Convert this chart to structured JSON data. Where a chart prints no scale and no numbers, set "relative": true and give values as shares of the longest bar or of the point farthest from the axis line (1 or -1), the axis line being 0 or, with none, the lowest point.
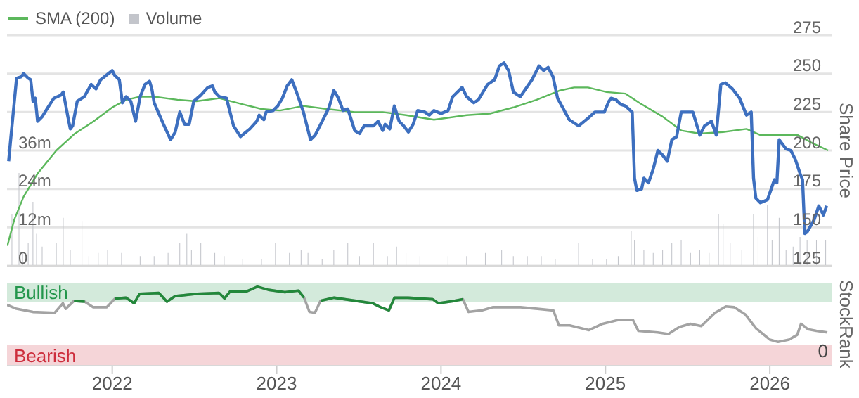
{
  "chart_data": [
    {
      "type": "line",
      "legend": "top left",
      "grid": "y",
      "tick_labels": "y",
      "xlim": [
        2021.36,
        2026.38
      ],
      "ylim": [
        0,
        72
      ],
      "yticks": [
        0,
        {
          "value": 12,
          "label": "12m"
        },
        {
          "value": 24,
          "label": "24m"
        },
        {
          "value": 36,
          "label": "36m"
        }
      ],
      "y2lim": [
        125,
        275
      ],
      "y2ticks": [
        125,
        150,
        175,
        200,
        225,
        250,
        275
      ],
      "y2label": "Share Price",
      "series": [
        {
          "type": "bar",
          "name": "Volume",
          "color": "#c3c5cb",
          "x": [
            2021.39,
            2021.433,
            2021.455,
            2021.489,
            2021.518,
            2021.54,
            2021.574,
            2021.66,
            2021.702,
            2021.745,
            2021.816,
            2021.858,
            2021.915,
            2021.972,
            2022.057,
            2022.17,
            2022.255,
            2022.34,
            2022.411,
            2022.454,
            2022.482,
            2022.539,
            2022.624,
            2022.681,
            2022.794,
            2022.908,
            2022.993,
            2023.078,
            2023.149,
            2023.191,
            2023.277,
            2023.348,
            2023.433,
            2023.504,
            2023.589,
            2023.674,
            2023.73,
            2023.787,
            2023.872,
            2024.043,
            2024.156,
            2024.27,
            2024.369,
            2024.44,
            2024.525,
            2024.61,
            2024.695,
            2024.837,
            2024.922,
            2025.007,
            2025.078,
            2025.157,
            2025.177,
            2025.234,
            2025.291,
            2025.348,
            2025.404,
            2025.461,
            2025.518,
            2025.574,
            2025.631,
            2025.688,
            2025.716,
            2025.759,
            2025.83,
            2025.901,
            2025.929,
            2025.986,
            2026.014,
            2026.057,
            2026.099,
            2026.142,
            2026.184,
            2026.227,
            2026.284,
            2026.34
          ],
          "values": [
            16,
            29,
            4,
            7,
            20,
            10,
            6,
            7,
            15,
            5,
            14,
            3,
            4,
            5,
            4,
            3,
            3,
            4,
            7,
            10,
            5,
            7,
            4,
            3,
            2,
            2,
            7,
            4,
            5,
            4,
            2,
            5,
            7,
            3,
            7,
            3,
            6,
            4,
            3,
            3,
            3,
            4,
            5,
            3,
            3,
            3,
            2,
            7,
            2,
            2,
            3,
            11,
            8,
            5,
            4,
            5,
            7,
            8,
            4,
            5,
            4,
            16,
            13,
            7,
            5,
            16,
            9,
            19,
            8,
            15,
            5,
            6,
            9,
            8,
            8,
            8
          ]
        },
        {
          "type": "line",
          "name": "SMA (200)",
          "color": "#5cb85c",
          "axis": "y2",
          "x": [
            2021.362,
            2021.404,
            2021.461,
            2021.546,
            2021.66,
            2021.773,
            2021.887,
            2022.0,
            2022.085,
            2022.17,
            2022.255,
            2022.397,
            2022.511,
            2022.652,
            2022.794,
            2022.908,
            2023.021,
            2023.163,
            2023.305,
            2023.475,
            2023.645,
            2023.787,
            2023.957,
            2024.156,
            2024.298,
            2024.44,
            2024.582,
            2024.723,
            2024.809,
            2024.894,
            2025.007,
            2025.121,
            2025.206,
            2025.348,
            2025.461,
            2025.574,
            2025.716,
            2025.858,
            2025.943,
            2026.057,
            2026.17,
            2026.255,
            2026.355
          ],
          "values": [
            138,
            155,
            170,
            185,
            200,
            211,
            219,
            228,
            233,
            235,
            235,
            233,
            232,
            234,
            230,
            227,
            226,
            229,
            227,
            225,
            225,
            223,
            220,
            223,
            224,
            228,
            233,
            239,
            241,
            241,
            238,
            237,
            231,
            222,
            213,
            211,
            212,
            214,
            210,
            210,
            210,
            205,
            200
          ]
        },
        {
          "type": "line",
          "color": "#3d6fbf",
          "axis": "y2",
          "x": [
            2021.37,
            2021.382,
            2021.418,
            2021.447,
            2021.461,
            2021.489,
            2021.504,
            2021.518,
            2021.532,
            2021.546,
            2021.574,
            2021.603,
            2021.645,
            2021.688,
            2021.702,
            2021.73,
            2021.745,
            2021.759,
            2021.787,
            2021.83,
            2021.872,
            2021.901,
            2021.929,
            2022.0,
            2022.014,
            2022.043,
            2022.062,
            2022.085,
            2022.113,
            2022.142,
            2022.17,
            2022.199,
            2022.227,
            2022.241,
            2022.255,
            2022.312,
            2022.355,
            2022.383,
            2022.411,
            2022.44,
            2022.468,
            2022.496,
            2022.539,
            2022.582,
            2022.61,
            2022.624,
            2022.652,
            2022.695,
            2022.738,
            2022.78,
            2022.837,
            2022.879,
            2022.894,
            2022.922,
            2022.936,
            2022.979,
            2023.007,
            2023.035,
            2023.064,
            2023.092,
            2023.121,
            2023.163,
            2023.206,
            2023.234,
            2023.277,
            2023.319,
            2023.348,
            2023.376,
            2023.404,
            2023.433,
            2023.475,
            2023.504,
            2023.532,
            2023.574,
            2023.589,
            2023.617,
            2023.645,
            2023.66,
            2023.688,
            2023.716,
            2023.745,
            2023.773,
            2023.801,
            2023.83,
            2023.858,
            2023.901,
            2023.929,
            2023.957,
            2024.0,
            2024.043,
            2024.071,
            2024.128,
            2024.156,
            2024.199,
            2024.227,
            2024.284,
            2024.326,
            2024.355,
            2024.383,
            2024.411,
            2024.44,
            2024.482,
            2024.553,
            2024.596,
            2024.624,
            2024.652,
            2024.681,
            2024.709,
            2024.78,
            2024.837,
            2024.894,
            2024.936,
            2024.993,
            2025.021,
            2025.035,
            2025.064,
            2025.092,
            2025.121,
            2025.163,
            2025.177,
            2025.191,
            2025.22,
            2025.234,
            2025.262,
            2025.291,
            2025.319,
            2025.348,
            2025.376,
            2025.404,
            2025.433,
            2025.461,
            2025.504,
            2025.532,
            2025.574,
            2025.603,
            2025.645,
            2025.674,
            2025.702,
            2025.73,
            2025.773,
            2025.816,
            2025.858,
            2025.887,
            2025.901,
            2025.915,
            2025.943,
            2025.986,
            2026.028,
            2026.043,
            2026.057,
            2026.099,
            2026.128,
            2026.156,
            2026.184,
            2026.199,
            2026.213,
            2026.227,
            2026.27,
            2026.298,
            2026.312,
            2026.326,
            2026.346
          ],
          "values": [
            193,
            207,
            247,
            248,
            250,
            247,
            246,
            232,
            234,
            219,
            222,
            227,
            234,
            236,
            238,
            222,
            214,
            216,
            232,
            235,
            243,
            240,
            246,
            252,
            249,
            246,
            231,
            235,
            232,
            219,
            235,
            243,
            245,
            240,
            231,
            217,
            207,
            212,
            225,
            217,
            217,
            232,
            236,
            241,
            242,
            238,
            235,
            234,
            216,
            209,
            214,
            219,
            223,
            220,
            225,
            226,
            229,
            234,
            242,
            246,
            238,
            225,
            207,
            210,
            219,
            228,
            239,
            234,
            226,
            227,
            213,
            211,
            216,
            216,
            216,
            219,
            213,
            217,
            214,
            229,
            219,
            216,
            212,
            217,
            226,
            225,
            223,
            226,
            224,
            226,
            235,
            241,
            235,
            231,
            233,
            243,
            246,
            255,
            257,
            252,
            238,
            235,
            246,
            255,
            252,
            254,
            248,
            234,
            220,
            216,
            221,
            225,
            225,
            232,
            234,
            233,
            230,
            229,
            225,
            182,
            174,
            175,
            182,
            179,
            188,
            200,
            197,
            193,
            207,
            209,
            225,
            225,
            225,
            210,
            216,
            219,
            210,
            243,
            244,
            240,
            234,
            223,
            225,
            182,
            169,
            166,
            168,
            181,
            179,
            207,
            201,
            200,
            194,
            185,
            181,
            146,
            147,
            155,
            164,
            161,
            158,
            164
          ]
        }
      ]
    },
    {
      "type": "line",
      "relative": true,
      "ylabel": "StockRank",
      "xlim": [
        2021.36,
        2026.38
      ],
      "xticks": [
        2022,
        2023,
        2024,
        2025,
        2026
      ],
      "annotations": [
        "0"
      ],
      "bands": [
        {
          "axis": "y",
          "from": 0.8,
          "to": 1.05,
          "label": "Bullish",
          "color": "#d3eadb"
        },
        {
          "axis": "y",
          "from": 0,
          "to": 0.26,
          "label": "Bearish",
          "color": "#f5d5d8"
        }
      ],
      "series": [
        {
          "color": "#a3a3a3",
          "x": [
            2021.36,
            2021.417,
            2021.517,
            2021.65,
            2021.7,
            2021.717,
            2021.767,
            2021.833,
            2021.883,
            2021.967,
            2022.017,
            2022.083,
            2022.133,
            2022.167,
            2022.283,
            2022.333,
            2022.383,
            2022.517,
            2022.65,
            2022.683,
            2022.717,
            2022.817,
            2022.883,
            2022.95,
            2023.05,
            2023.133,
            2023.167,
            2023.2,
            2023.233,
            2023.267,
            2023.35,
            2023.483,
            2023.583,
            2023.633,
            2023.683,
            2023.717,
            2023.8,
            2023.95,
            2023.983,
            2024.083,
            2024.133,
            2024.167,
            2024.25,
            2024.317,
            2024.483,
            2024.683,
            2024.717,
            2024.783,
            2024.9,
            2024.983,
            2025.083,
            2025.167,
            2025.2,
            2025.317,
            2025.383,
            2025.45,
            2025.517,
            2025.583,
            2025.667,
            2025.733,
            2025.783,
            2025.85,
            2025.917,
            2026.0,
            2026.05,
            2026.117,
            2026.167,
            2026.19,
            2026.233,
            2026.283,
            2026.35
          ],
          "values": [
            0.77,
            0.72,
            0.68,
            0.67,
            0.79,
            0.72,
            0.82,
            0.81,
            0.74,
            0.74,
            0.85,
            0.86,
            0.79,
            0.91,
            0.92,
            0.81,
            0.88,
            0.91,
            0.92,
            0.85,
            0.94,
            0.94,
            1.0,
            0.96,
            0.93,
            0.95,
            0.86,
            0.68,
            0.67,
            0.82,
            0.86,
            0.82,
            0.79,
            0.74,
            0.7,
            0.86,
            0.86,
            0.84,
            0.79,
            0.82,
            0.84,
            0.68,
            0.7,
            0.74,
            0.74,
            0.7,
            0.51,
            0.51,
            0.45,
            0.53,
            0.58,
            0.58,
            0.44,
            0.42,
            0.4,
            0.49,
            0.53,
            0.5,
            0.67,
            0.75,
            0.74,
            0.65,
            0.47,
            0.33,
            0.3,
            0.33,
            0.39,
            0.53,
            0.46,
            0.44,
            0.42
          ]
        },
        {
          "color": "#22883a",
          "x": [
            2021.767,
            2021.833
          ],
          "values": [
            0.82,
            0.81
          ]
        },
        {
          "color": "#22883a",
          "x": [
            2022.017,
            2022.083,
            2022.133,
            2022.167,
            2022.283,
            2022.333,
            2022.383,
            2022.517,
            2022.65,
            2022.683,
            2022.717,
            2022.817,
            2022.883,
            2022.95,
            2023.05,
            2023.133,
            2023.167
          ],
          "values": [
            0.85,
            0.86,
            0.79,
            0.91,
            0.92,
            0.81,
            0.88,
            0.91,
            0.92,
            0.85,
            0.94,
            0.94,
            1.0,
            0.96,
            0.93,
            0.95,
            0.86
          ]
        },
        {
          "color": "#22883a",
          "x": [
            2023.267,
            2023.35,
            2023.483,
            2023.583,
            2023.633,
            2023.683,
            2023.717,
            2023.8,
            2023.95,
            2023.983,
            2024.083,
            2024.133
          ],
          "values": [
            0.82,
            0.86,
            0.82,
            0.79,
            0.74,
            0.7,
            0.86,
            0.86,
            0.84,
            0.79,
            0.82,
            0.84
          ]
        }
      ]
    }
  ]
}
